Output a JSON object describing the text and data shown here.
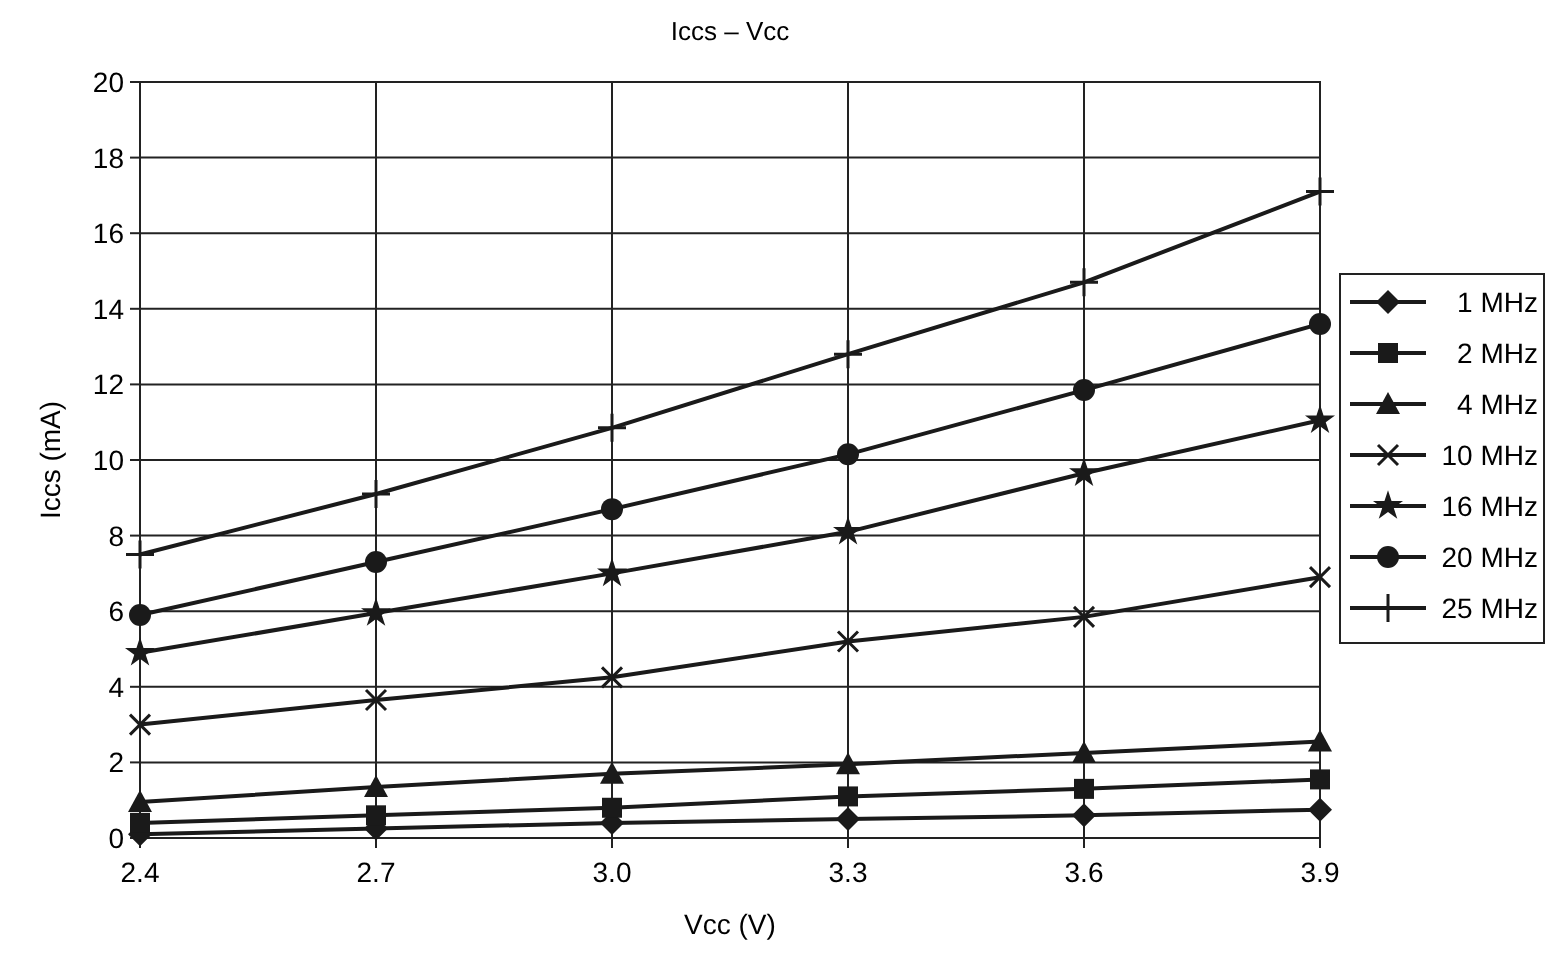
{
  "chart_data": {
    "type": "line",
    "title": "Iccs – Vcc",
    "xlabel": "Vcc (V)",
    "ylabel": "Iccs (mA)",
    "x": [
      2.4,
      2.7,
      3.0,
      3.3,
      3.6,
      3.9
    ],
    "xlim": [
      2.4,
      3.9
    ],
    "xticks": [
      2.4,
      2.7,
      {
        "value": 3,
        "label": "3.0"
      },
      3.3,
      3.6,
      3.9
    ],
    "ylim": [
      0,
      20
    ],
    "yticks": [
      0,
      2,
      4,
      6,
      8,
      10,
      12,
      14,
      16,
      18,
      20
    ],
    "grid": true,
    "legend": "right",
    "line_style": "solid",
    "series": [
      {
        "name": "1 MHz",
        "color": "#1a1a1a",
        "marker": "diamond",
        "values": [
          0.1,
          0.25,
          0.4,
          0.5,
          0.6,
          0.75
        ]
      },
      {
        "name": "2 MHz",
        "color": "#1a1a1a",
        "marker": "square",
        "values": [
          0.4,
          0.6,
          0.8,
          1.1,
          1.3,
          1.55
        ]
      },
      {
        "name": "4 MHz",
        "color": "#1a1a1a",
        "marker": "triangle",
        "values": [
          0.95,
          1.35,
          1.7,
          1.95,
          2.25,
          2.55
        ]
      },
      {
        "name": "10 MHz",
        "color": "#1a1a1a",
        "marker": "cross",
        "values": [
          3.0,
          3.65,
          4.25,
          5.2,
          5.85,
          6.9
        ]
      },
      {
        "name": "16 MHz",
        "color": "#1a1a1a",
        "marker": "star",
        "values": [
          4.9,
          5.95,
          7.0,
          8.1,
          9.65,
          11.05
        ]
      },
      {
        "name": "20 MHz",
        "color": "#1a1a1a",
        "marker": "circle",
        "values": [
          5.9,
          7.3,
          8.7,
          10.15,
          11.85,
          13.6
        ]
      },
      {
        "name": "25 MHz",
        "color": "#1a1a1a",
        "marker": "plus",
        "values": [
          7.5,
          9.1,
          10.85,
          12.8,
          14.7,
          17.1
        ]
      }
    ]
  }
}
